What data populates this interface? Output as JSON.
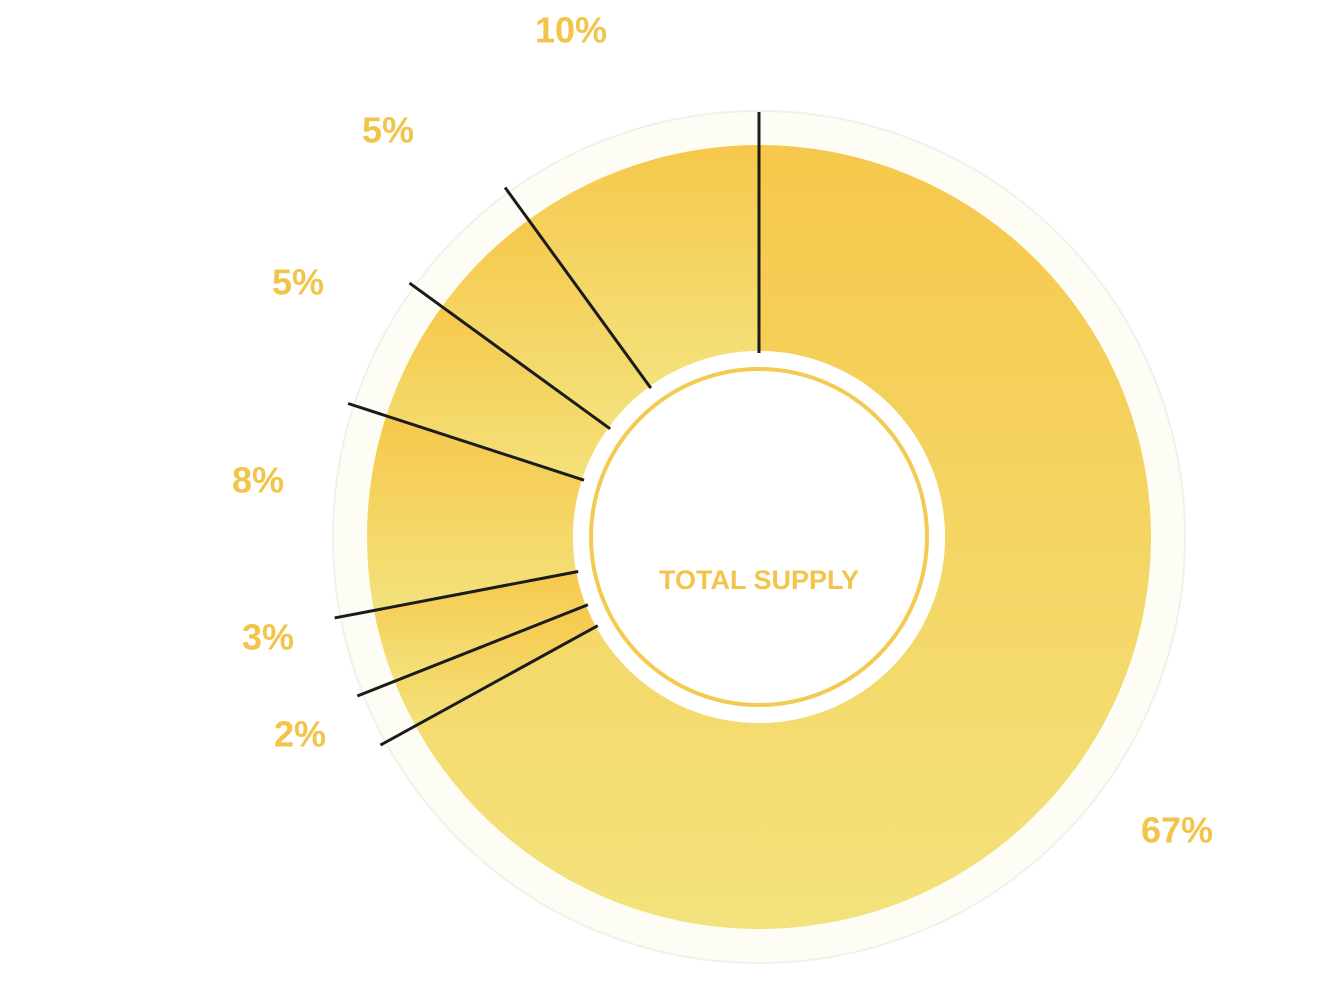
{
  "chart_data": {
    "type": "donut",
    "center_label": "TOTAL SUPPLY",
    "values": [
      10,
      5,
      5,
      8,
      3,
      2,
      67
    ],
    "value_labels": [
      "10%",
      "5%",
      "5%",
      "8%",
      "3%",
      "2%",
      "67%"
    ],
    "colors": [
      "#f6c84b",
      "#f3e27c"
    ]
  }
}
